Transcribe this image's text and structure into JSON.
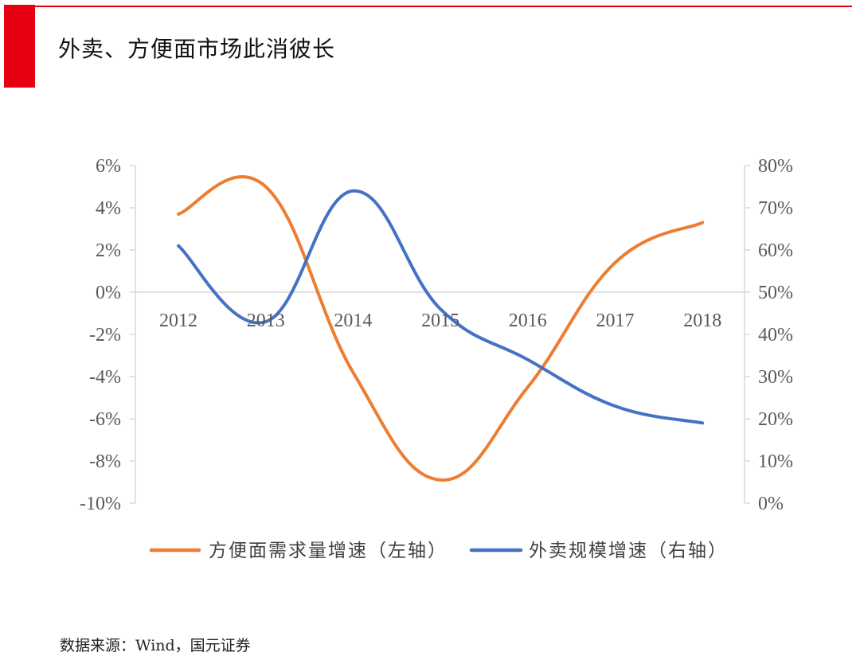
{
  "header": {
    "title": "外卖、方便面市场此消彼长",
    "accent_color": "#e60012"
  },
  "chart_data": {
    "type": "line",
    "title": "",
    "x": [
      "2012",
      "2013",
      "2014",
      "2015",
      "2016",
      "2017",
      "2018"
    ],
    "left_axis": {
      "ylim": [
        -10,
        6
      ],
      "ticks": [
        6,
        4,
        2,
        0,
        -2,
        -4,
        -6,
        -8,
        -10
      ],
      "tick_labels": [
        "6%",
        "4%",
        "2%",
        "0%",
        "-2%",
        "-4%",
        "-6%",
        "-8%",
        "-10%"
      ]
    },
    "right_axis": {
      "ylim": [
        0,
        80
      ],
      "ticks": [
        80,
        70,
        60,
        50,
        40,
        30,
        20,
        10,
        0
      ],
      "tick_labels": [
        "80%",
        "70%",
        "60%",
        "50%",
        "40%",
        "30%",
        "20%",
        "10%",
        "0%"
      ]
    },
    "series": [
      {
        "name": "方便面需求量增速（左轴）",
        "axis": "left",
        "color": "#ed7d31",
        "values": [
          3.7,
          5.0,
          -3.8,
          -8.9,
          -4.5,
          1.4,
          3.3
        ]
      },
      {
        "name": "外卖规模增速（右轴）",
        "axis": "right",
        "color": "#4472c4",
        "values": [
          61,
          43,
          74,
          46,
          34,
          23,
          19
        ]
      }
    ],
    "legend_position": "bottom"
  },
  "footer": {
    "source": "数据来源：Wind，国元证券"
  }
}
